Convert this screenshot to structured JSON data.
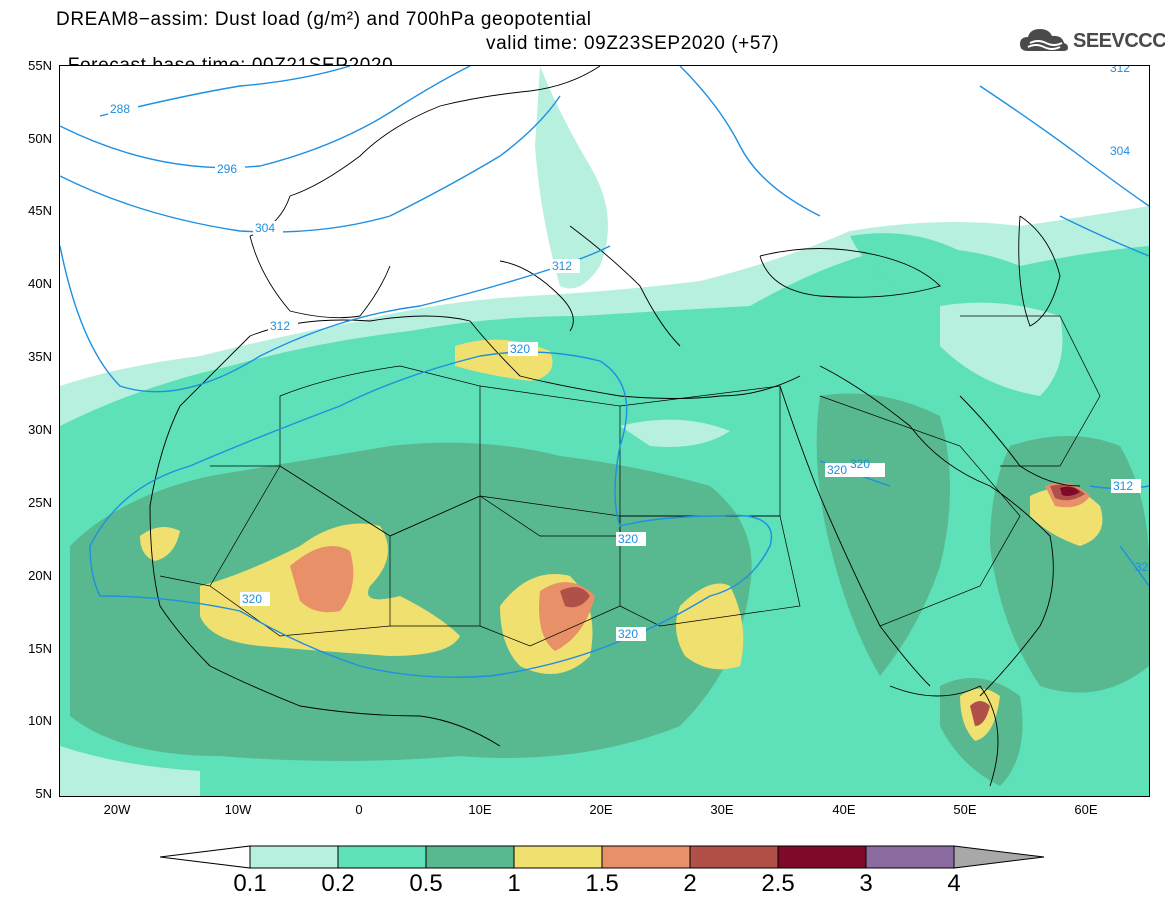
{
  "title": {
    "line1": "DREAM8−assim: Dust load (g/m²) and 700hPa geopotential",
    "line2_base": "Forecast base time: 00Z21SEP2020",
    "line2_valid": "valid time: 09Z23SEP2020 (+57)"
  },
  "logo": {
    "text": "SEEVCCC",
    "icon": "cloud-icon",
    "color": "#4a4a4a"
  },
  "map": {
    "lon_range": [
      -25,
      65
    ],
    "lat_range": [
      5,
      55
    ],
    "lat_labels": [
      "55N",
      "50N",
      "45N",
      "40N",
      "35N",
      "30N",
      "25N",
      "20N",
      "15N",
      "10N",
      "5N"
    ],
    "lon_labels": [
      "20W",
      "10W",
      "0",
      "10E",
      "20E",
      "30E",
      "40E",
      "50E",
      "60E"
    ],
    "contour_labels": [
      "288",
      "296",
      "304",
      "312",
      "320",
      "320",
      "320",
      "320",
      "320",
      "312",
      "312",
      "304",
      "312",
      "320"
    ],
    "contour_color": "#1e90e0"
  },
  "colorbar": {
    "ticks": [
      "0.1",
      "0.2",
      "0.5",
      "1",
      "1.5",
      "2",
      "2.5",
      "3",
      "4"
    ],
    "colors": [
      "#b8f0e0",
      "#5ee0b8",
      "#58b890",
      "#f0e070",
      "#e89068",
      "#b05048",
      "#800828",
      "#8c6ca0",
      "#a8a8a8"
    ]
  }
}
